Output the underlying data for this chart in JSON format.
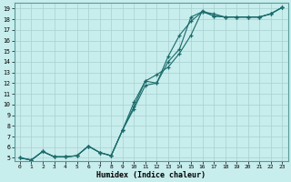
{
  "xlabel": "Humidex (Indice chaleur)",
  "ylabel": "",
  "bg_color": "#c8eded",
  "line_color": "#1a6b6b",
  "grid_color": "#a8d0d0",
  "xlim": [
    -0.5,
    23.5
  ],
  "ylim": [
    4.7,
    19.5
  ],
  "xticks": [
    0,
    1,
    2,
    3,
    4,
    5,
    6,
    7,
    8,
    9,
    10,
    11,
    12,
    13,
    14,
    15,
    16,
    17,
    18,
    19,
    20,
    21,
    22,
    23
  ],
  "yticks": [
    5,
    6,
    7,
    8,
    9,
    10,
    11,
    12,
    13,
    14,
    15,
    16,
    17,
    18,
    19
  ],
  "line1_x": [
    0,
    1,
    2,
    3,
    4,
    5,
    6,
    7,
    8,
    9,
    10,
    11,
    12,
    13,
    14,
    15,
    16,
    17,
    18,
    19,
    20,
    21,
    22,
    23
  ],
  "line1_y": [
    5.0,
    4.8,
    5.6,
    5.1,
    5.1,
    5.2,
    6.1,
    5.5,
    5.2,
    7.6,
    9.8,
    12.2,
    12.0,
    14.0,
    15.2,
    18.2,
    18.7,
    18.3,
    18.2,
    18.2,
    18.2,
    18.2,
    18.5,
    19.1
  ],
  "line2_x": [
    0,
    1,
    2,
    3,
    4,
    5,
    6,
    7,
    8,
    9,
    10,
    11,
    12,
    13,
    14,
    15,
    16,
    17,
    18,
    19,
    20,
    21,
    22,
    23
  ],
  "line2_y": [
    5.0,
    4.8,
    5.6,
    5.1,
    5.1,
    5.2,
    6.1,
    5.5,
    5.2,
    7.6,
    10.2,
    12.2,
    12.8,
    13.5,
    14.8,
    16.5,
    18.8,
    18.3,
    18.2,
    18.2,
    18.2,
    18.2,
    18.5,
    19.1
  ],
  "line3_x": [
    0,
    1,
    2,
    3,
    4,
    5,
    6,
    7,
    8,
    9,
    10,
    11,
    12,
    13,
    14,
    15,
    16,
    17,
    18,
    19,
    20,
    21,
    22,
    23
  ],
  "line3_y": [
    5.0,
    4.8,
    5.6,
    5.1,
    5.1,
    5.2,
    6.1,
    5.5,
    5.2,
    7.6,
    9.6,
    11.8,
    12.0,
    14.5,
    16.5,
    17.8,
    18.7,
    18.5,
    18.2,
    18.2,
    18.2,
    18.2,
    18.5,
    19.1
  ]
}
